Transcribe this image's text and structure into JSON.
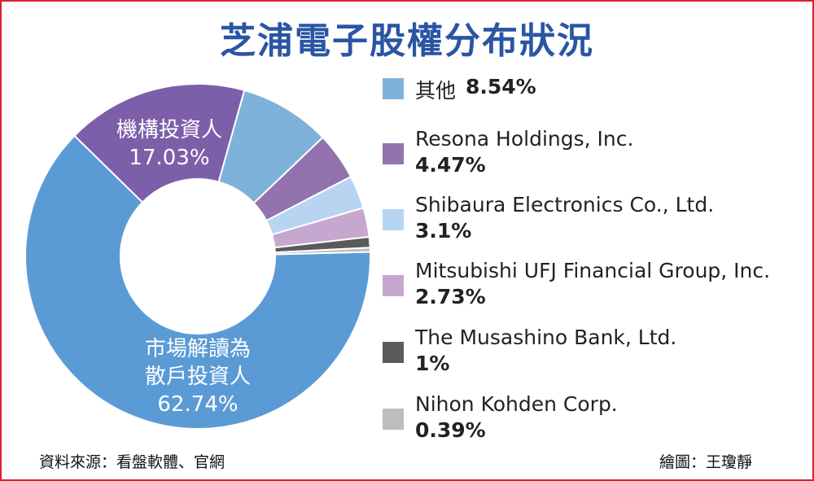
{
  "chart_data": {
    "type": "pie",
    "title": "芝浦電子股權分布狀況",
    "slices": [
      {
        "name": "市場解讀為散戶投資人",
        "label_lines": [
          "市場解讀為",
          "散戶投資人"
        ],
        "value": 62.74,
        "value_label": "62.74%",
        "color": "#5b9bd5"
      },
      {
        "name": "機構投資人",
        "label_lines": [
          "機構投資人"
        ],
        "value": 17.03,
        "value_label": "17.03%",
        "color": "#7c5fa8"
      },
      {
        "name": "其他",
        "value": 8.54,
        "value_label": "8.54%",
        "color": "#7fb2da"
      },
      {
        "name": "Resona Holdings, Inc.",
        "value": 4.47,
        "value_label": "4.47%",
        "color": "#9273ad"
      },
      {
        "name": "Shibaura Electronics Co., Ltd.",
        "value": 3.1,
        "value_label": "3.1%",
        "color": "#b7d5f0"
      },
      {
        "name": "Mitsubishi UFJ Financial Group, Inc.",
        "value": 2.73,
        "value_label": "2.73%",
        "color": "#c5a7cf"
      },
      {
        "name": "The Musashino Bank, Ltd.",
        "value": 1,
        "value_label": "1%",
        "color": "#5a5a5a"
      },
      {
        "name": "Nihon Kohden Corp.",
        "value": 0.39,
        "value_label": "0.39%",
        "color": "#bdbdbd"
      }
    ],
    "legend_placement": "right"
  },
  "legend": [
    {
      "name": "其他",
      "value_label": "8.54%",
      "color": "#7fb2da"
    },
    {
      "name": "Resona Holdings, Inc.",
      "value_label": "4.47%",
      "color": "#9273ad"
    },
    {
      "name": "Shibaura Electronics Co., Ltd.",
      "value_label": "3.1%",
      "color": "#b7d5f0"
    },
    {
      "name": "Mitsubishi UFJ Financial Group, Inc.",
      "value_label": "2.73%",
      "color": "#c5a7cf"
    },
    {
      "name": "The Musashino Bank, Ltd.",
      "value_label": "1%",
      "color": "#5a5a5a"
    },
    {
      "name": "Nihon Kohden Corp.",
      "value_label": "0.39%",
      "color": "#bdbdbd"
    }
  ],
  "footer": {
    "source": "資料來源：看盤軟體、官網",
    "credit": "繪圖：王瓊靜"
  },
  "colors": {
    "title": "#2a55a4",
    "border": "#d9232a"
  }
}
